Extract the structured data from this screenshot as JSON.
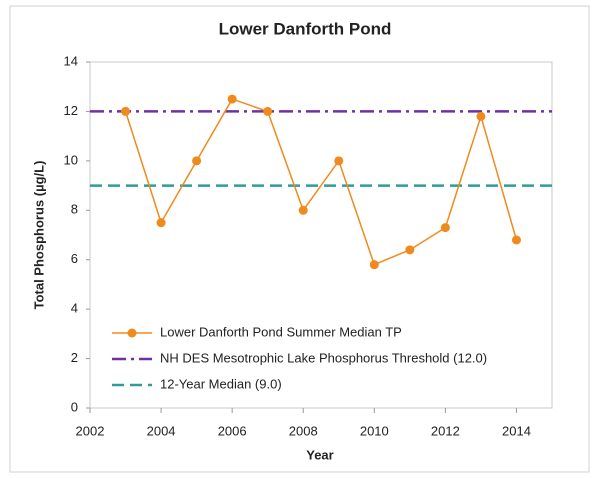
{
  "chart_data": {
    "type": "line",
    "title": "Lower Danforth Pond",
    "x_label": "Year",
    "y_label": "Total Phosphorus (µg/L)",
    "x": [
      2003,
      2004,
      2005,
      2006,
      2007,
      2008,
      2009,
      2010,
      2011,
      2012,
      2013,
      2014
    ],
    "series": [
      {
        "name": "Lower Danforth Pond Summer Median TP",
        "color": "#f08a1c",
        "values": [
          12.0,
          7.5,
          10.0,
          12.5,
          12.0,
          8.0,
          10.0,
          5.8,
          6.4,
          7.3,
          11.8,
          6.8
        ]
      }
    ],
    "reference_lines": [
      {
        "name": "NH DES Mesotrophic Lake Phosphorus Threshold (12.0)",
        "value": 12.0,
        "color": "#7030a0",
        "dash": "14 5 3 5"
      },
      {
        "name": "12-Year Median (9.0)",
        "value": 9.0,
        "color": "#2e9c9c",
        "dash": "12 6"
      }
    ],
    "xlim": [
      2002,
      2015
    ],
    "xticks": [
      2002,
      2004,
      2006,
      2008,
      2010,
      2012,
      2014
    ],
    "ylim": [
      0,
      14
    ],
    "yticks": [
      0,
      2,
      4,
      6,
      8,
      10,
      12,
      14
    ],
    "grid": false,
    "legend": "lower-left"
  }
}
